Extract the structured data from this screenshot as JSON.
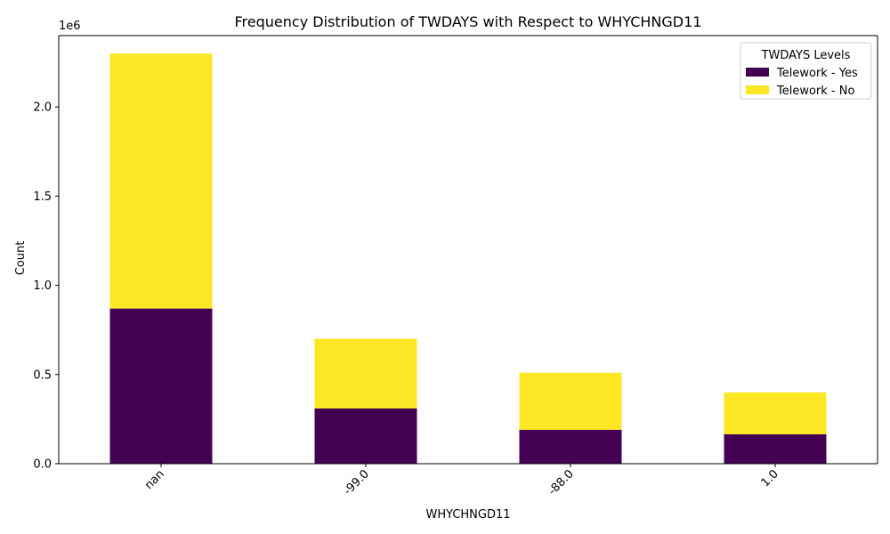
{
  "chart_data": {
    "type": "bar",
    "stacked": true,
    "title": "Frequency Distribution of TWDAYS with Respect to WHYCHNGD11",
    "xlabel": "WHYCHNGD11",
    "ylabel": "Count",
    "y_scale_label": "1e6",
    "categories": [
      "nan",
      "-99.0",
      "-88.0",
      "1.0"
    ],
    "series": [
      {
        "name": "Telework - Yes",
        "color": "#440154",
        "values": [
          870000,
          310000,
          190000,
          165000
        ]
      },
      {
        "name": "Telework - No",
        "color": "#fde725",
        "values": [
          1430000,
          390000,
          320000,
          235000
        ]
      }
    ],
    "ylim": [
      0,
      2400000
    ],
    "yticks": [
      0,
      500000,
      1000000,
      1500000,
      2000000
    ],
    "ytick_labels": [
      "0.0",
      "0.5",
      "1.0",
      "1.5",
      "2.0"
    ],
    "legend": {
      "title": "TWDAYS Levels",
      "placement": "top-right"
    },
    "grid": false
  }
}
